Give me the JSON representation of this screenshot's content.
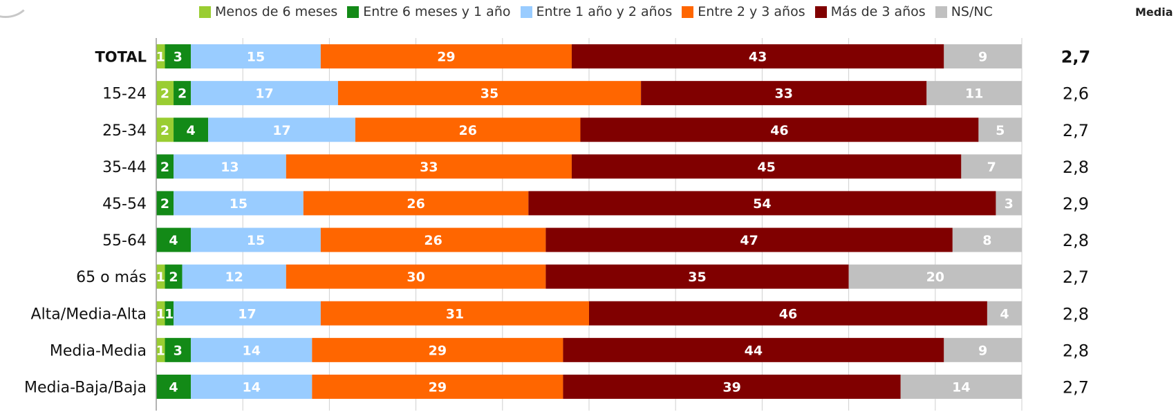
{
  "chart_data": {
    "type": "bar",
    "orientation": "horizontal",
    "stacked": true,
    "categories": [
      "TOTAL",
      "15-24",
      "25-34",
      "35-44",
      "45-54",
      "55-64",
      "65 o más",
      "Alta/Media-Alta",
      "Media-Media",
      "Media-Baja/Baja"
    ],
    "series": [
      {
        "name": "Menos de 6 meses",
        "color": "#9acd32",
        "values": [
          1,
          2,
          2,
          0,
          0,
          0,
          1,
          1,
          1,
          0
        ]
      },
      {
        "name": "Entre 6 meses y 1 año",
        "color": "#138a17",
        "values": [
          3,
          2,
          4,
          2,
          2,
          4,
          2,
          1,
          3,
          4
        ]
      },
      {
        "name": "Entre 1 año y 2 años",
        "color": "#99ccff",
        "values": [
          15,
          17,
          17,
          13,
          15,
          15,
          12,
          17,
          14,
          14
        ]
      },
      {
        "name": "Entre 2 y 3 años",
        "color": "#ff6600",
        "values": [
          29,
          35,
          26,
          33,
          26,
          26,
          30,
          31,
          29,
          29
        ]
      },
      {
        "name": "Más de 3 años",
        "color": "#800000",
        "values": [
          43,
          33,
          46,
          45,
          54,
          47,
          35,
          46,
          44,
          39
        ]
      },
      {
        "name": "NS/NC",
        "color": "#c0c0c0",
        "values": [
          9,
          11,
          5,
          7,
          3,
          8,
          20,
          4,
          9,
          14
        ]
      }
    ],
    "media_header": "Media",
    "media": [
      "2,7",
      "2,6",
      "2,7",
      "2,8",
      "2,9",
      "2,8",
      "2,7",
      "2,8",
      "2,8",
      "2,7"
    ],
    "xlim": [
      0,
      100
    ],
    "grid": true,
    "legend_position": "top"
  }
}
